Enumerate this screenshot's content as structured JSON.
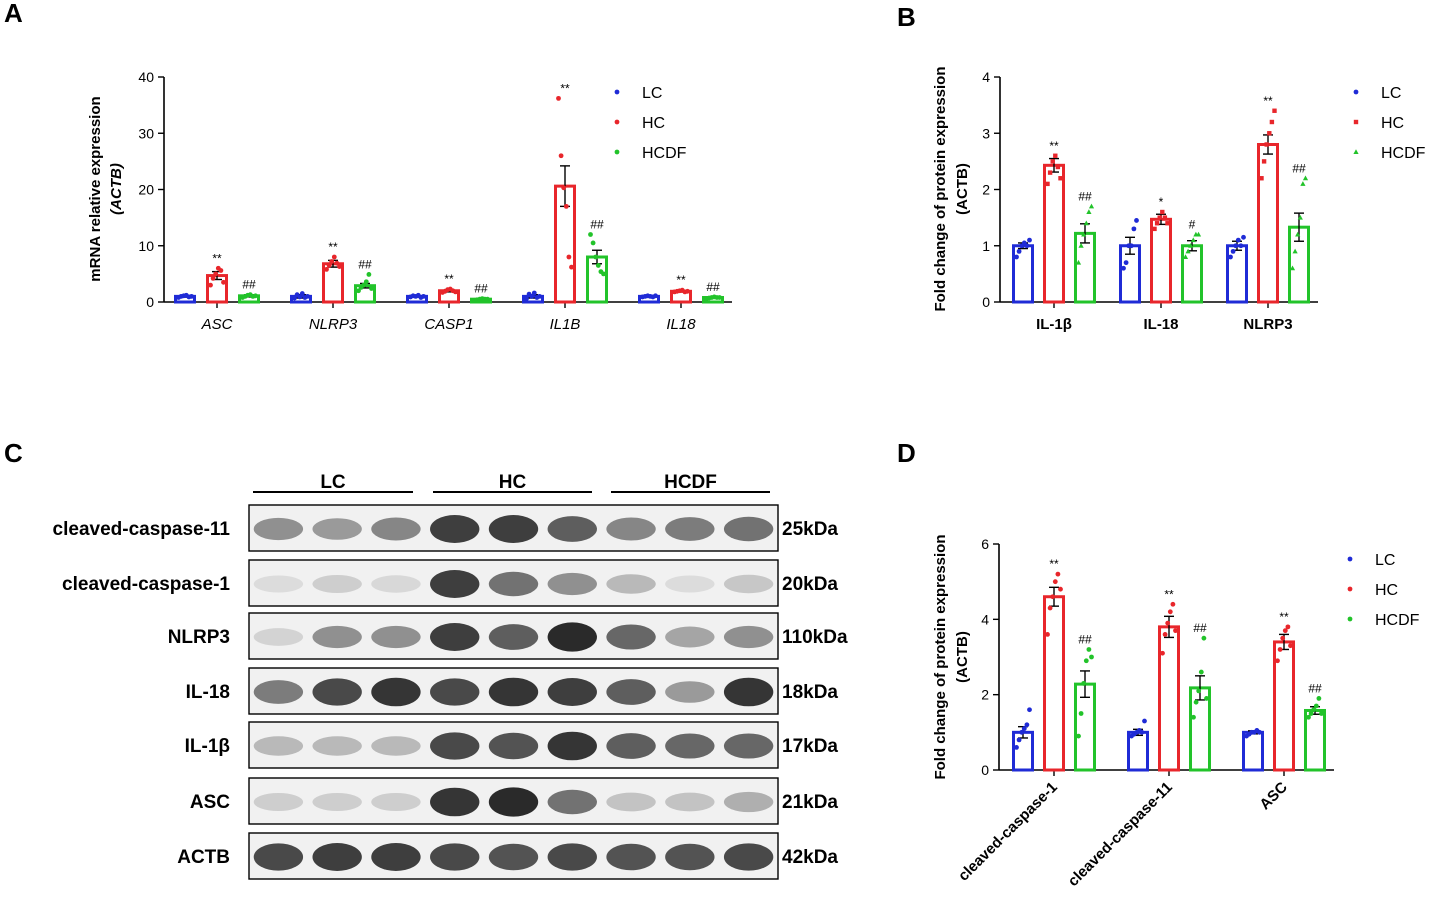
{
  "panel_labels": [
    "A",
    "B",
    "C",
    "D"
  ],
  "chart_data": [
    {
      "panel": "A",
      "type": "bar",
      "ylabel": [
        "mRNA relative expression",
        "(ACTB)"
      ],
      "ylim": [
        0,
        40
      ],
      "yticks": [
        0,
        10,
        20,
        30,
        40
      ],
      "categories": [
        "ASC",
        "NLRP3",
        "CASP1",
        "IL1B",
        "IL18"
      ],
      "category_style": "italic",
      "legend": {
        "position": "top-right",
        "marker": "dot"
      },
      "series": [
        {
          "name": "LC",
          "color": "#1f2bd6",
          "values": [
            1.0,
            1.0,
            1.0,
            1.0,
            1.0
          ],
          "sem": [
            0.1,
            0.3,
            0.1,
            0.3,
            0.1
          ],
          "points": [
            [
              0.8,
              1.0,
              1.1,
              1.2,
              0.9,
              1.0
            ],
            [
              0.7,
              1.3,
              0.9,
              1.5,
              0.8,
              1.0
            ],
            [
              0.9,
              1.1,
              1.0,
              1.2,
              0.8,
              1.0
            ],
            [
              0.6,
              1.4,
              1.0,
              1.6,
              0.8,
              1.0
            ],
            [
              0.9,
              1.0,
              1.1,
              1.0,
              0.9,
              1.1
            ]
          ],
          "marks": [
            "",
            "",
            "",
            "",
            ""
          ]
        },
        {
          "name": "HC",
          "color": "#e8262b",
          "values": [
            4.7,
            6.8,
            2.0,
            20.6,
            1.9
          ],
          "sem": [
            0.7,
            0.6,
            0.2,
            3.6,
            0.1
          ],
          "points": [
            [
              3.0,
              4.2,
              5.0,
              6.0,
              5.6,
              3.5
            ],
            [
              5.8,
              6.5,
              7.2,
              8.0,
              6.9,
              6.3
            ],
            [
              1.7,
              1.9,
              2.2,
              2.3,
              2.0,
              1.8
            ],
            [
              36.2,
              26.0,
              20.3,
              17.0,
              8.0,
              6.2
            ],
            [
              1.8,
              1.9,
              2.0,
              2.1,
              1.8,
              1.9
            ]
          ],
          "marks": [
            "**",
            "**",
            "**",
            "**",
            "**"
          ]
        },
        {
          "name": "HCDF",
          "color": "#22c32a",
          "values": [
            1.1,
            2.9,
            0.5,
            8.0,
            0.8
          ],
          "sem": [
            0.2,
            0.4,
            0.1,
            1.2,
            0.1
          ],
          "points": [
            [
              0.8,
              1.0,
              1.2,
              1.3,
              1.0,
              1.1
            ],
            [
              2.0,
              2.6,
              3.0,
              3.6,
              4.9,
              2.4
            ],
            [
              0.3,
              0.4,
              0.5,
              0.6,
              0.5,
              0.5
            ],
            [
              12.0,
              10.5,
              8.0,
              6.5,
              5.4,
              5.0
            ],
            [
              0.6,
              0.7,
              0.8,
              0.9,
              0.8,
              0.8
            ]
          ],
          "marks": [
            "##",
            "##",
            "##",
            "##",
            "##"
          ]
        }
      ]
    },
    {
      "panel": "B",
      "type": "bar",
      "ylabel": [
        "Fold change of protein expression",
        "(ACTB)"
      ],
      "ylim": [
        0,
        4
      ],
      "yticks": [
        0,
        1,
        2,
        3,
        4
      ],
      "categories": [
        "IL-1β",
        "IL-18",
        "NLRP3"
      ],
      "category_style": "bold",
      "legend": {
        "position": "top-right",
        "marker": "shape"
      },
      "series": [
        {
          "name": "LC",
          "color": "#1f2bd6",
          "marker": "circle",
          "values": [
            1.0,
            1.0,
            1.0
          ],
          "sem": [
            0.05,
            0.15,
            0.08
          ],
          "points": [
            [
              0.8,
              0.9,
              1.0,
              1.05,
              1.0,
              1.1
            ],
            [
              0.6,
              0.7,
              1.0,
              1.0,
              1.3,
              1.45
            ],
            [
              0.8,
              0.9,
              1.0,
              1.1,
              1.0,
              1.15
            ]
          ],
          "marks": [
            "",
            "",
            ""
          ]
        },
        {
          "name": "HC",
          "color": "#e8262b",
          "marker": "square",
          "values": [
            2.43,
            1.47,
            2.8
          ],
          "sem": [
            0.12,
            0.09,
            0.17
          ],
          "points": [
            [
              2.1,
              2.3,
              2.5,
              2.6,
              2.4,
              2.2
            ],
            [
              1.3,
              1.4,
              1.5,
              1.6,
              1.5,
              1.4
            ],
            [
              2.2,
              2.5,
              2.8,
              3.0,
              3.2,
              3.4
            ]
          ],
          "marks": [
            "**",
            "*",
            "**"
          ]
        },
        {
          "name": "HCDF",
          "color": "#22c32a",
          "marker": "triangle",
          "values": [
            1.22,
            1.0,
            1.33
          ],
          "sem": [
            0.17,
            0.09,
            0.25
          ],
          "points": [
            [
              0.7,
              1.0,
              1.2,
              1.4,
              1.6,
              1.7
            ],
            [
              0.8,
              0.9,
              1.0,
              1.1,
              1.2,
              1.2
            ],
            [
              0.6,
              0.9,
              1.2,
              1.5,
              2.1,
              2.2
            ]
          ],
          "marks": [
            "##",
            "#",
            "##"
          ]
        }
      ]
    },
    {
      "panel": "D",
      "type": "bar",
      "ylabel": [
        "Fold change of protein expression",
        "(ACTB)"
      ],
      "ylim": [
        0,
        6
      ],
      "yticks": [
        0,
        2,
        4,
        6
      ],
      "categories": [
        "cleaved-caspase-1",
        "cleaved-caspase-11",
        "ASC"
      ],
      "category_style": "bold-rotated",
      "legend": {
        "position": "top-right",
        "marker": "dot"
      },
      "series": [
        {
          "name": "LC",
          "color": "#1f2bd6",
          "values": [
            1.0,
            1.0,
            1.0
          ],
          "sem": [
            0.15,
            0.08,
            0.04
          ],
          "points": [
            [
              0.6,
              0.8,
              1.0,
              1.1,
              1.2,
              1.6
            ],
            [
              0.9,
              0.95,
              1.0,
              1.05,
              1.0,
              1.3
            ],
            [
              0.9,
              0.95,
              1.0,
              1.0,
              1.05,
              1.0
            ]
          ],
          "marks": [
            "",
            "",
            ""
          ]
        },
        {
          "name": "HC",
          "color": "#e8262b",
          "values": [
            4.6,
            3.8,
            3.4
          ],
          "sem": [
            0.25,
            0.28,
            0.2
          ],
          "points": [
            [
              3.6,
              4.3,
              4.6,
              5.0,
              5.2,
              4.8
            ],
            [
              3.1,
              3.6,
              3.9,
              4.2,
              4.4,
              3.7
            ],
            [
              2.9,
              3.2,
              3.5,
              3.7,
              3.8,
              3.3
            ]
          ],
          "marks": [
            "**",
            "**",
            "**"
          ]
        },
        {
          "name": "HCDF",
          "color": "#22c32a",
          "values": [
            2.28,
            2.18,
            1.58
          ],
          "sem": [
            0.35,
            0.32,
            0.1
          ],
          "points": [
            [
              0.9,
              1.5,
              2.3,
              2.9,
              3.2,
              3.0
            ],
            [
              1.4,
              1.8,
              2.1,
              2.6,
              3.5,
              1.9
            ],
            [
              1.4,
              1.5,
              1.6,
              1.7,
              1.9,
              1.5
            ]
          ],
          "marks": [
            "##",
            "##",
            "##"
          ]
        }
      ]
    }
  ],
  "western_blot": {
    "groups": [
      "LC",
      "HC",
      "HCDF"
    ],
    "rows": [
      {
        "protein": "cleaved-caspase-11",
        "size": "25kDa",
        "intensity": [
          0.45,
          0.4,
          0.5,
          0.85,
          0.85,
          0.7,
          0.5,
          0.55,
          0.6
        ]
      },
      {
        "protein": "cleaved-caspase-1",
        "size": "20kDa",
        "intensity": [
          0.08,
          0.15,
          0.1,
          0.85,
          0.6,
          0.45,
          0.25,
          0.08,
          0.18
        ]
      },
      {
        "protein": "NLRP3",
        "size": "110kDa",
        "intensity": [
          0.12,
          0.45,
          0.45,
          0.85,
          0.7,
          0.95,
          0.65,
          0.35,
          0.45
        ]
      },
      {
        "protein": "IL-18",
        "size": "18kDa",
        "intensity": [
          0.55,
          0.8,
          0.9,
          0.8,
          0.9,
          0.85,
          0.7,
          0.4,
          0.9
        ]
      },
      {
        "protein": "IL-1β",
        "size": "17kDa",
        "intensity": [
          0.25,
          0.25,
          0.25,
          0.8,
          0.75,
          0.9,
          0.7,
          0.65,
          0.65
        ]
      },
      {
        "protein": "ASC",
        "size": "21kDa",
        "intensity": [
          0.15,
          0.15,
          0.15,
          0.9,
          0.95,
          0.6,
          0.2,
          0.2,
          0.3
        ]
      },
      {
        "protein": "ACTB",
        "size": "42kDa",
        "intensity": [
          0.8,
          0.85,
          0.85,
          0.8,
          0.75,
          0.8,
          0.75,
          0.75,
          0.8
        ]
      }
    ]
  }
}
